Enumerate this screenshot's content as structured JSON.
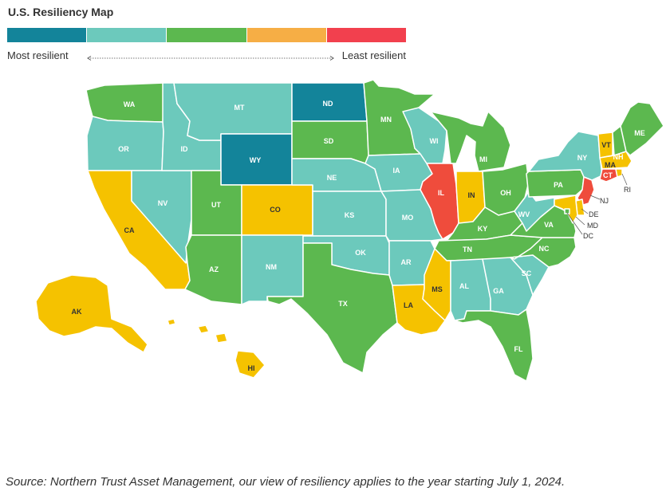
{
  "title": "U.S. Resiliency Map",
  "legend": {
    "low_label": "Most resilient",
    "high_label": "Least resilient",
    "colors": [
      "#13849a",
      "#6cc9bc",
      "#5cb84f",
      "#f6ae45",
      "#f2404e"
    ]
  },
  "tier_colors": {
    "1": "#13849a",
    "2": "#6cc9bc",
    "3": "#5cb84f",
    "4": "#f5c200",
    "5": "#ef4c3c"
  },
  "states": [
    {
      "code": "WA",
      "tier": 3
    },
    {
      "code": "OR",
      "tier": 2
    },
    {
      "code": "CA",
      "tier": 4
    },
    {
      "code": "NV",
      "tier": 2
    },
    {
      "code": "ID",
      "tier": 2
    },
    {
      "code": "MT",
      "tier": 2
    },
    {
      "code": "WY",
      "tier": 1
    },
    {
      "code": "UT",
      "tier": 3
    },
    {
      "code": "AZ",
      "tier": 3
    },
    {
      "code": "CO",
      "tier": 4
    },
    {
      "code": "NM",
      "tier": 2
    },
    {
      "code": "ND",
      "tier": 1
    },
    {
      "code": "SD",
      "tier": 3
    },
    {
      "code": "NE",
      "tier": 2
    },
    {
      "code": "KS",
      "tier": 2
    },
    {
      "code": "OK",
      "tier": 2
    },
    {
      "code": "TX",
      "tier": 3
    },
    {
      "code": "MN",
      "tier": 3
    },
    {
      "code": "IA",
      "tier": 2
    },
    {
      "code": "MO",
      "tier": 2
    },
    {
      "code": "AR",
      "tier": 2
    },
    {
      "code": "LA",
      "tier": 4
    },
    {
      "code": "WI",
      "tier": 2
    },
    {
      "code": "IL",
      "tier": 5
    },
    {
      "code": "MI",
      "tier": 3
    },
    {
      "code": "IN",
      "tier": 4
    },
    {
      "code": "OH",
      "tier": 3
    },
    {
      "code": "KY",
      "tier": 3
    },
    {
      "code": "TN",
      "tier": 3
    },
    {
      "code": "MS",
      "tier": 4
    },
    {
      "code": "AL",
      "tier": 2
    },
    {
      "code": "GA",
      "tier": 2
    },
    {
      "code": "FL",
      "tier": 3
    },
    {
      "code": "SC",
      "tier": 2
    },
    {
      "code": "NC",
      "tier": 3
    },
    {
      "code": "VA",
      "tier": 3
    },
    {
      "code": "WV",
      "tier": 2
    },
    {
      "code": "PA",
      "tier": 3
    },
    {
      "code": "NY",
      "tier": 2
    },
    {
      "code": "VT",
      "tier": 4
    },
    {
      "code": "NH",
      "tier": 3
    },
    {
      "code": "ME",
      "tier": 3
    },
    {
      "code": "MA",
      "tier": 4
    },
    {
      "code": "RI",
      "tier": 4
    },
    {
      "code": "CT",
      "tier": 5
    },
    {
      "code": "NJ",
      "tier": 5
    },
    {
      "code": "DE",
      "tier": 4
    },
    {
      "code": "MD",
      "tier": 4
    },
    {
      "code": "DC",
      "tier": 3
    },
    {
      "code": "AK",
      "tier": 4
    },
    {
      "code": "HI",
      "tier": 4
    }
  ],
  "source": "Source: Northern Trust Asset Management, our view of resiliency applies to the year starting July 1, 2024."
}
